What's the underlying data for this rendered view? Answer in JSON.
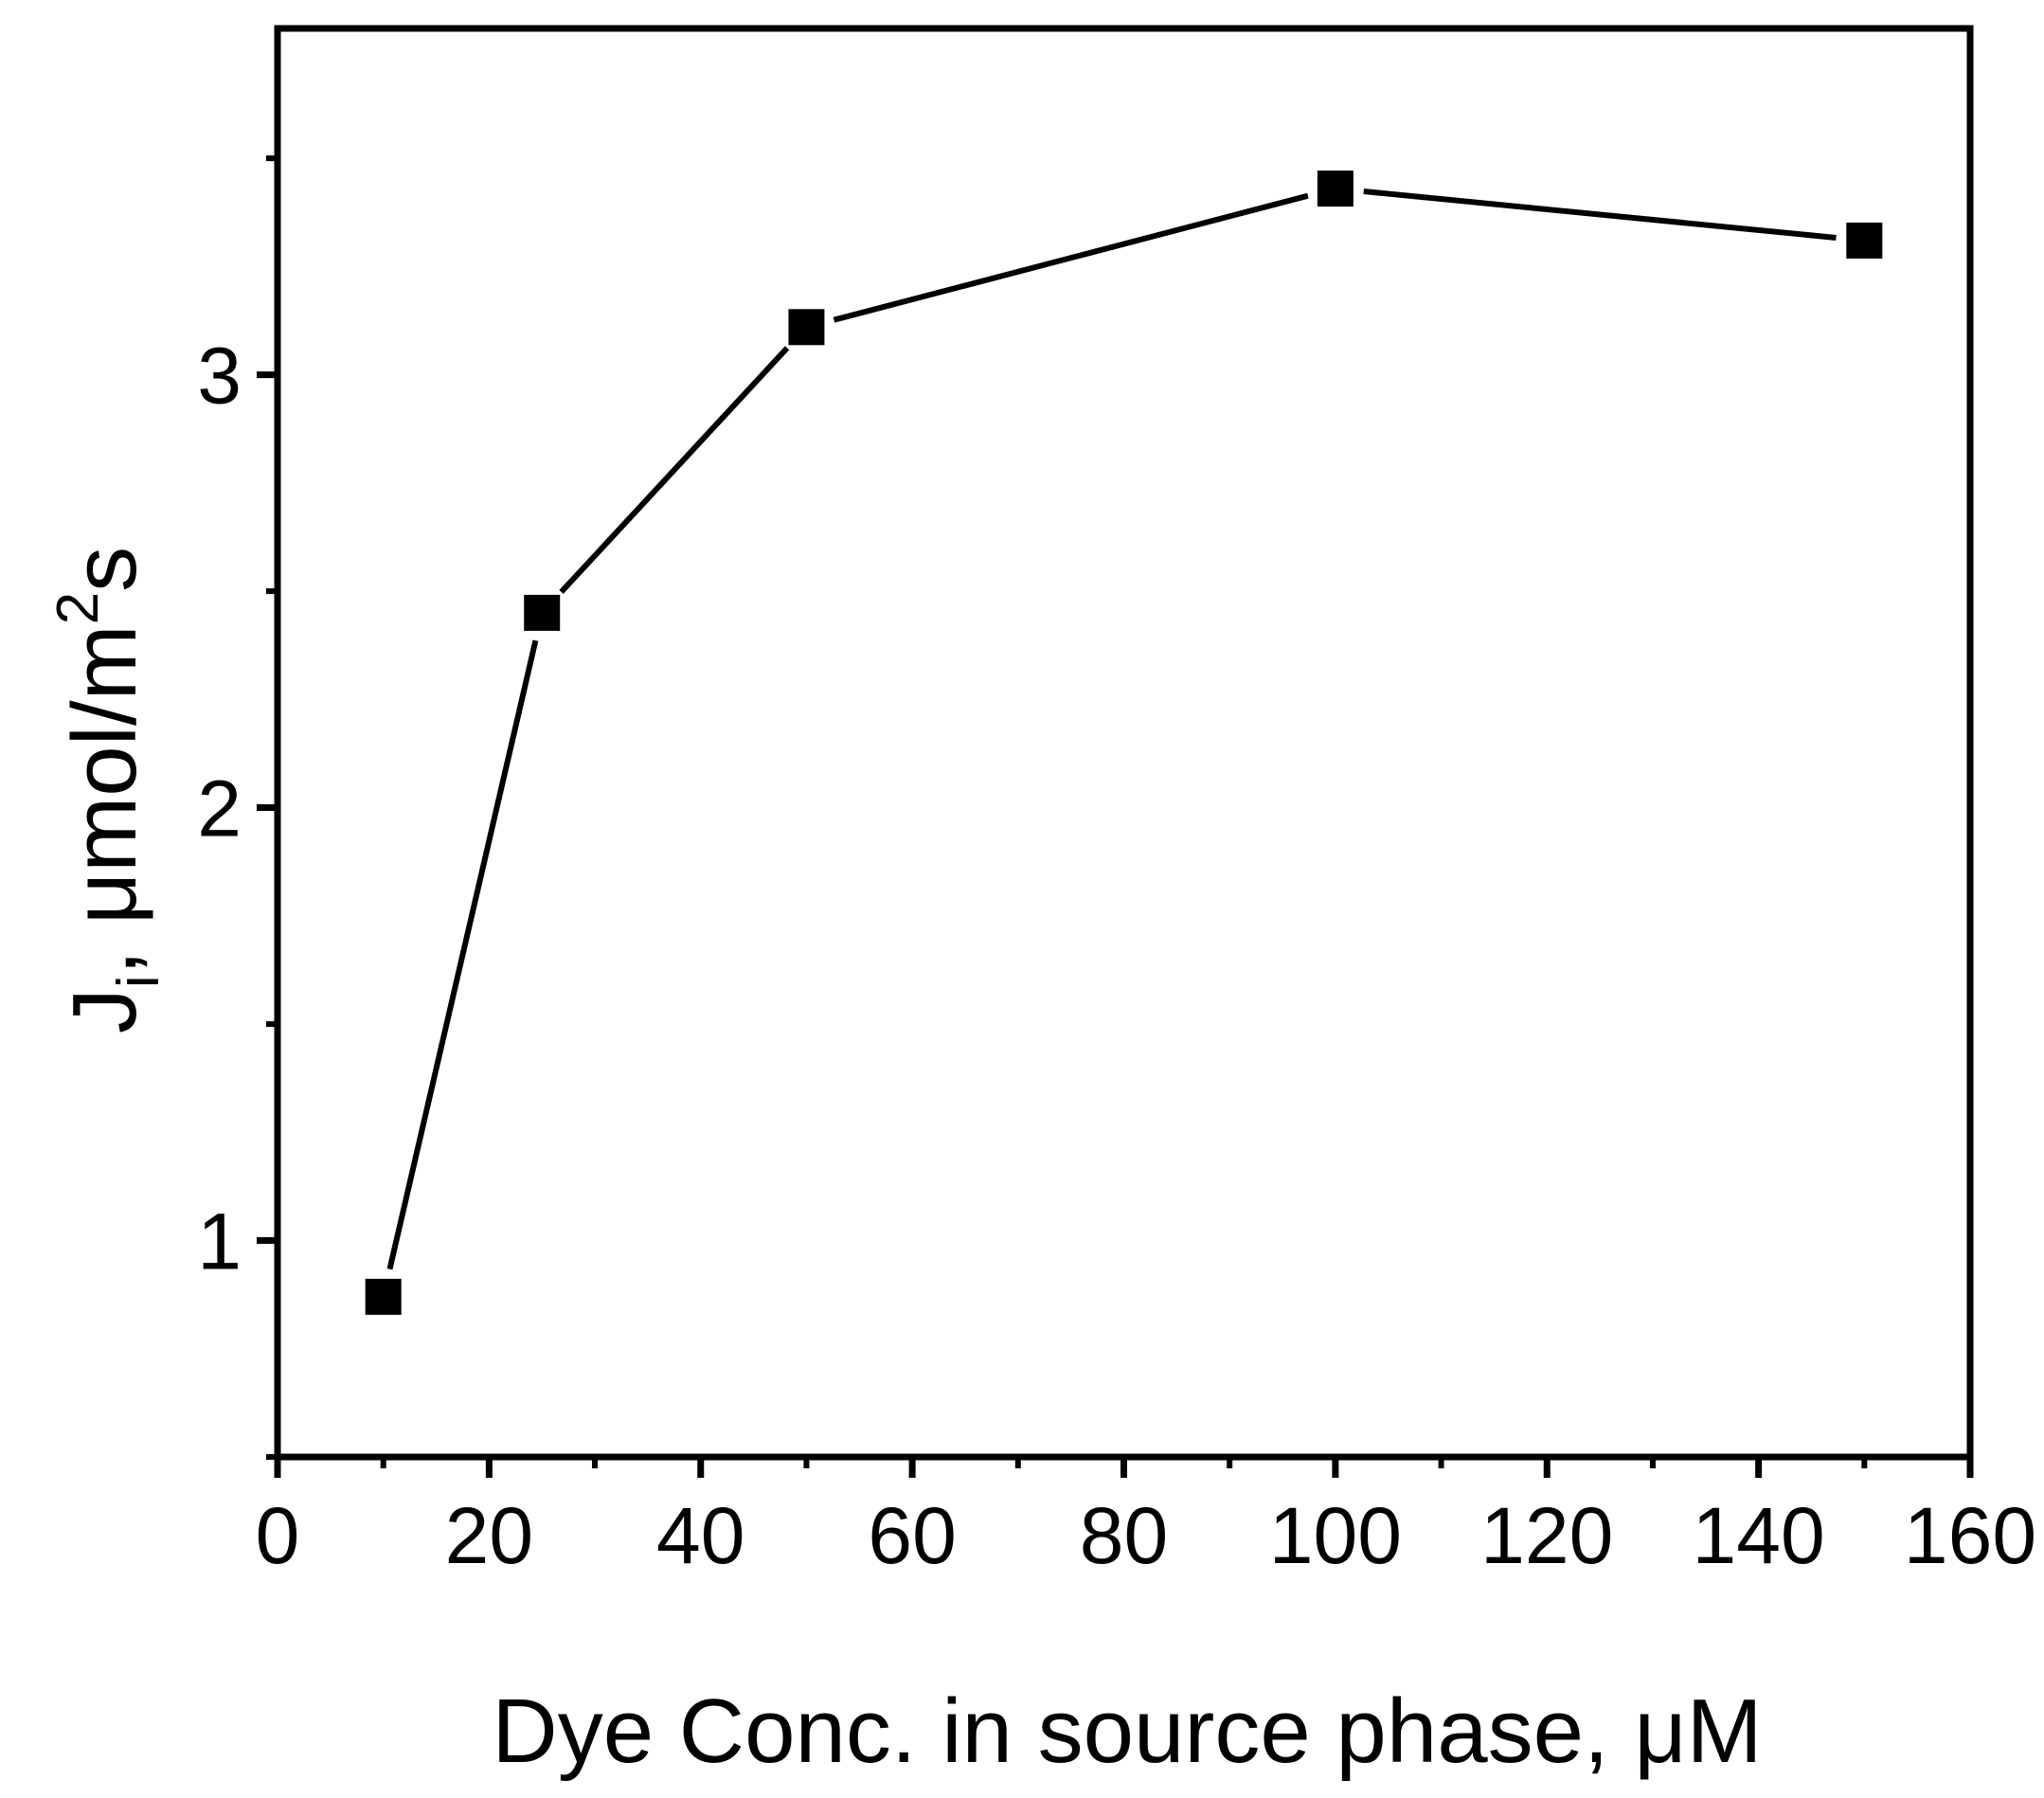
{
  "chart_data": {
    "type": "line",
    "title": "",
    "xlabel": "Dye Conc. in source phase, μM",
    "ylabel": {
      "main": "J",
      "subscript": "i",
      "sep": ", ",
      "unit": "μmol/m",
      "sup": "2",
      "unit_tail": "s"
    },
    "xlim": [
      0,
      160
    ],
    "ylim": [
      0.5,
      3.8
    ],
    "x_ticks": [
      0,
      20,
      40,
      60,
      80,
      100,
      120,
      140,
      160
    ],
    "x_minor_ticks": [
      10,
      30,
      50,
      70,
      90,
      110,
      130,
      150
    ],
    "y_ticks": [
      1,
      2,
      3
    ],
    "y_minor_ticks": [
      0.5,
      1.5,
      2.5,
      3.5
    ],
    "grid": false,
    "legend": null,
    "series": [
      {
        "marker": "square",
        "color": "#000000",
        "x": [
          10,
          25,
          50,
          100,
          150
        ],
        "y": [
          0.87,
          2.45,
          3.11,
          3.43,
          3.31
        ]
      }
    ]
  }
}
